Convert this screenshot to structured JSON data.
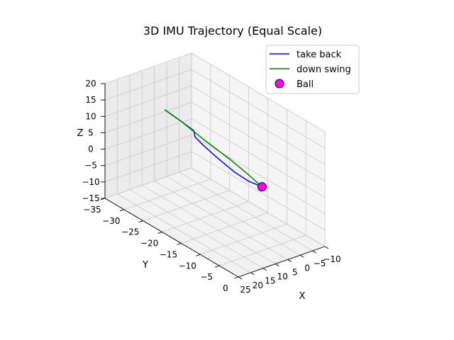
{
  "chart_data": {
    "type": "line",
    "projection": "3d",
    "title": "3D IMU Trajectory (Equal Scale)",
    "xlabel": "X",
    "ylabel": "Y",
    "zlabel": "Z",
    "xlim": [
      -10,
      25
    ],
    "ylim": [
      -35,
      0
    ],
    "zlim": [
      -15,
      20
    ],
    "x_ticks": [
      -10,
      -5,
      0,
      5,
      10,
      15,
      20,
      25
    ],
    "y_ticks": [
      -35,
      -30,
      -25,
      -20,
      -15,
      -10,
      -5,
      0
    ],
    "z_ticks": [
      -15,
      -10,
      -5,
      0,
      5,
      10,
      15,
      20
    ],
    "x_tick_labels": [
      "−10",
      "−5",
      "0",
      "5",
      "10",
      "15",
      "20",
      "25"
    ],
    "y_tick_labels": [
      "−35",
      "−30",
      "−25",
      "−20",
      "−15",
      "−10",
      "−5",
      "0"
    ],
    "z_tick_labels": [
      "−15",
      "−10",
      "−5",
      "0",
      "5",
      "10",
      "15",
      "20"
    ],
    "grid": true,
    "legend_position": "top-right",
    "series": [
      {
        "name": "take back",
        "color": "#0000ff",
        "points": [
          {
            "x": 0,
            "y": -10,
            "z": -1
          },
          {
            "x": 1,
            "y": -13,
            "z": -1
          },
          {
            "x": 2,
            "y": -16,
            "z": 0
          },
          {
            "x": 3,
            "y": -20,
            "z": 2
          },
          {
            "x": 4,
            "y": -23,
            "z": 4
          },
          {
            "x": 4,
            "y": -25,
            "z": 5
          },
          {
            "x": 3,
            "y": -26,
            "z": 6
          },
          {
            "x": 5,
            "y": -28,
            "z": 8
          },
          {
            "x": 7,
            "y": -31,
            "z": 10
          }
        ]
      },
      {
        "name": "down swing",
        "color": "#008000",
        "points": [
          {
            "x": 7,
            "y": -31,
            "z": 10
          },
          {
            "x": 5,
            "y": -28,
            "z": 8
          },
          {
            "x": 3,
            "y": -23,
            "z": 5
          },
          {
            "x": 2,
            "y": -17,
            "z": 3
          },
          {
            "x": 1,
            "y": -13,
            "z": 1
          },
          {
            "x": 0,
            "y": -10,
            "z": -1
          }
        ]
      }
    ],
    "markers": [
      {
        "name": "Ball",
        "x": 0,
        "y": -10,
        "z": -1,
        "color": "#ff00ff",
        "edge": "#000000"
      }
    ]
  }
}
